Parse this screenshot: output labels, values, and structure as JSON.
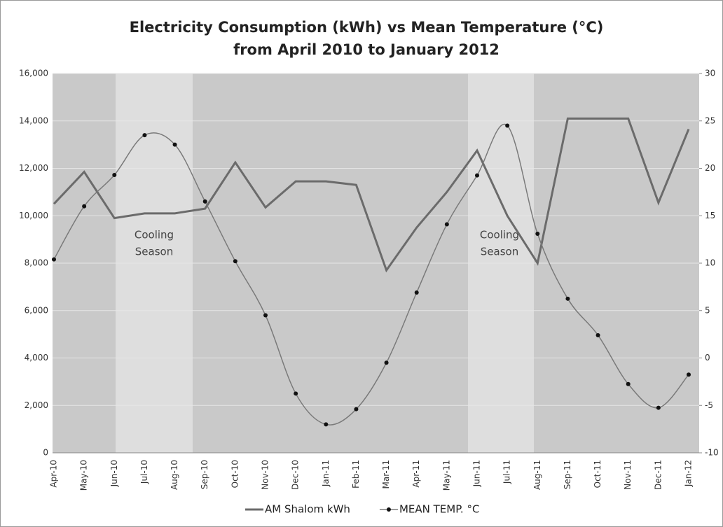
{
  "chart_data": {
    "type": "line",
    "title": "Electricity Consumption (kWh) vs Mean Temperature (°C)",
    "subtitle": "from April 2010 to January 2012",
    "categories": [
      "Apr-10",
      "May-10",
      "Jun-10",
      "Jul-10",
      "Aug-10",
      "Sep-10",
      "Oct-10",
      "Nov-10",
      "Dec-10",
      "Jan-11",
      "Feb-11",
      "Mar-11",
      "Apr-11",
      "May-11",
      "Jun-11",
      "Jul-11",
      "Aug-11",
      "Sep-11",
      "Oct-11",
      "Nov-11",
      "Dec-11",
      "Jan-12"
    ],
    "series": [
      {
        "name": "AM Shalom kWh",
        "color": "#6b6b6b",
        "values": [
          10500,
          11850,
          9900,
          10100,
          10100,
          10300,
          12250,
          10350,
          11450,
          11450,
          11300,
          7700,
          9500,
          11000,
          12750,
          10000,
          8000,
          14100,
          14100,
          14100,
          10550,
          13650
        ]
      },
      {
        "name": "MEAN TEMP. °C",
        "color": "#7a7a7a",
        "marker_color": "#111111",
        "axis": "y2",
        "smooth": true,
        "values": [
          10.4,
          16.0,
          19.3,
          23.5,
          22.5,
          16.5,
          10.2,
          4.5,
          -3.75,
          -7,
          -5.4,
          -0.5,
          6.9,
          14.1,
          19.25,
          24.5,
          13.1,
          6.25,
          2.4,
          -2.75,
          -5.25,
          -1.75
        ]
      }
    ],
    "ylim": [
      0,
      16000
    ],
    "yticks": [
      0,
      {
        "value": 2000,
        "label": "2,000"
      },
      {
        "value": 4000,
        "label": "4,000"
      },
      {
        "value": 6000,
        "label": "6,000"
      },
      {
        "value": 8000,
        "label": "8,000"
      },
      {
        "value": 10000,
        "label": "10,000"
      },
      {
        "value": 12000,
        "label": "12,000"
      },
      {
        "value": 14000,
        "label": "14,000"
      },
      {
        "value": 16000,
        "label": "16,000"
      }
    ],
    "y2lim": [
      -10,
      30
    ],
    "y2ticks": [
      -10,
      -5,
      0,
      5,
      10,
      15,
      20,
      25,
      30
    ],
    "grid": true,
    "legend": "bottom",
    "annotations": [
      [
        "Cooling",
        "Season"
      ],
      [
        "Cooling",
        "Season"
      ]
    ]
  }
}
